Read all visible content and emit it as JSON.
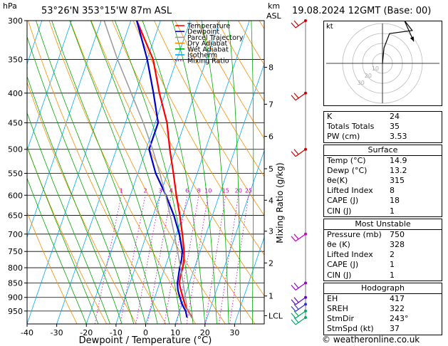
{
  "header": {
    "unit_hpa": "hPa",
    "location": "53°26'N  353°15'W  87m  ASL",
    "unit_km": "km",
    "unit_asl": "ASL",
    "datetime": "19.08.2024  12GMT  (Base: 00)"
  },
  "legend": {
    "items": [
      {
        "label": "Temperature",
        "color": "#ff0000",
        "style": "solid"
      },
      {
        "label": "Dewpoint",
        "color": "#0000cc",
        "style": "solid"
      },
      {
        "label": "Parcel Trajectory",
        "color": "#999999",
        "style": "solid"
      },
      {
        "label": "Dry Adiabat",
        "color": "#ff8c00",
        "style": "solid"
      },
      {
        "label": "Wet Adiabat",
        "color": "#00aa00",
        "style": "solid"
      },
      {
        "label": "Isotherm",
        "color": "#00aaff",
        "style": "solid"
      },
      {
        "label": "Mixing Ratio",
        "color": "#cc00cc",
        "style": "dotted"
      }
    ]
  },
  "chart_data": {
    "type": "line",
    "title": "",
    "xlabel": "Dewpoint / Temperature (°C)",
    "ylabel": "hPa",
    "y2label": "Mixing Ratio (g/kg)",
    "xlim": [
      -40,
      40
    ],
    "ylim": [
      300,
      1000
    ],
    "yscale": "log",
    "x_ticks": [
      "-40",
      "-30",
      "-20",
      "-10",
      "0",
      "10",
      "20",
      "30"
    ],
    "pressure_ticks": [
      "300",
      "350",
      "400",
      "450",
      "500",
      "550",
      "600",
      "650",
      "700",
      "750",
      "800",
      "850",
      "900",
      "950"
    ],
    "km_ticks": [
      {
        "p": 361,
        "label": "8"
      },
      {
        "p": 418,
        "label": "7"
      },
      {
        "p": 475,
        "label": "6"
      },
      {
        "p": 540,
        "label": "5"
      },
      {
        "p": 612,
        "label": "4"
      },
      {
        "p": 692,
        "label": "3"
      },
      {
        "p": 785,
        "label": "2"
      },
      {
        "p": 895,
        "label": "1"
      },
      {
        "p": 968,
        "label": "LCL"
      }
    ],
    "mixing_ratio_labels": [
      "1",
      "2",
      "3",
      "4",
      "6",
      "8",
      "10",
      "15",
      "20",
      "25"
    ],
    "series": [
      {
        "name": "Temperature",
        "color": "#ff0000",
        "points": [
          [
            14.9,
            975
          ],
          [
            12.8,
            950
          ],
          [
            11.0,
            925
          ],
          [
            9.5,
            900
          ],
          [
            8.0,
            875
          ],
          [
            6.6,
            850
          ],
          [
            6.2,
            825
          ],
          [
            6.0,
            800
          ],
          [
            5.5,
            775
          ],
          [
            4.6,
            750
          ],
          [
            2.0,
            700
          ],
          [
            -1.0,
            650
          ],
          [
            -4.5,
            600
          ],
          [
            -8.0,
            550
          ],
          [
            -12.0,
            500
          ],
          [
            -16.0,
            450
          ],
          [
            -22.0,
            400
          ],
          [
            -28.0,
            350
          ],
          [
            -38.0,
            300
          ]
        ]
      },
      {
        "name": "Dewpoint",
        "color": "#0000cc",
        "points": [
          [
            13.2,
            975
          ],
          [
            12.0,
            950
          ],
          [
            10.0,
            925
          ],
          [
            8.5,
            900
          ],
          [
            7.0,
            875
          ],
          [
            6.0,
            850
          ],
          [
            5.5,
            825
          ],
          [
            5.0,
            800
          ],
          [
            4.7,
            775
          ],
          [
            4.0,
            750
          ],
          [
            1.0,
            700
          ],
          [
            -3.0,
            650
          ],
          [
            -8.0,
            600
          ],
          [
            -14.0,
            550
          ],
          [
            -19.0,
            500
          ],
          [
            -19.0,
            450
          ],
          [
            -24.0,
            400
          ],
          [
            -30.0,
            350
          ],
          [
            -38.0,
            300
          ]
        ]
      },
      {
        "name": "Parcel Trajectory",
        "color": "#999999",
        "points": [
          [
            14.9,
            975
          ],
          [
            12.6,
            950
          ],
          [
            10.4,
            900
          ],
          [
            7.9,
            850
          ],
          [
            5.3,
            800
          ],
          [
            2.4,
            750
          ],
          [
            -0.7,
            700
          ],
          [
            -4.2,
            650
          ],
          [
            -8.1,
            600
          ],
          [
            -12.6,
            550
          ],
          [
            -17.8,
            500
          ],
          [
            -24.0,
            450
          ],
          [
            -31.5,
            400
          ],
          [
            -40.0,
            350
          ],
          [
            -49.0,
            300
          ]
        ]
      }
    ],
    "wind_barbs": [
      {
        "p": 300,
        "color": "#cc0000"
      },
      {
        "p": 400,
        "color": "#cc0000"
      },
      {
        "p": 500,
        "color": "#cc0000"
      },
      {
        "p": 700,
        "color": "#cc00cc"
      },
      {
        "p": 850,
        "color": "#9900cc"
      },
      {
        "p": 900,
        "color": "#6600cc"
      },
      {
        "p": 925,
        "color": "#3333cc"
      },
      {
        "p": 950,
        "color": "#00aa66"
      },
      {
        "p": 975,
        "color": "#00aa66"
      }
    ]
  },
  "hodograph": {
    "unit_label": "kt",
    "ring_labels": [
      "10",
      "20",
      "30"
    ],
    "trace": [
      [
        0,
        0
      ],
      [
        0.2,
        2.0
      ],
      [
        0.9,
        3.8
      ],
      [
        3.8,
        4.2
      ],
      [
        1.6,
        7.0
      ],
      [
        2.6,
        5.9
      ],
      [
        4.0,
        2.8
      ]
    ]
  },
  "indices": {
    "top": [
      {
        "k": "K",
        "v": "24"
      },
      {
        "k": "Totals Totals",
        "v": "35"
      },
      {
        "k": "PW (cm)",
        "v": "3.53"
      }
    ],
    "surface_title": "Surface",
    "surface": [
      {
        "k": "Temp (°C)",
        "v": "14.9"
      },
      {
        "k": "Dewp (°C)",
        "v": "13.2"
      },
      {
        "k": "θe(K)",
        "v": "315"
      },
      {
        "k": "Lifted Index",
        "v": "8"
      },
      {
        "k": "CAPE (J)",
        "v": "18"
      },
      {
        "k": "CIN (J)",
        "v": "1"
      }
    ],
    "unstable_title": "Most Unstable",
    "unstable": [
      {
        "k": "Pressure (mb)",
        "v": "750"
      },
      {
        "k": "θe (K)",
        "v": "328"
      },
      {
        "k": "Lifted Index",
        "v": "2"
      },
      {
        "k": "CAPE (J)",
        "v": "1"
      },
      {
        "k": "CIN (J)",
        "v": "1"
      }
    ],
    "hodo_title": "Hodograph",
    "hodo": [
      {
        "k": "EH",
        "v": "417"
      },
      {
        "k": "SREH",
        "v": "322"
      },
      {
        "k": "StmDir",
        "v": "243°"
      },
      {
        "k": "StmSpd (kt)",
        "v": "37"
      }
    ]
  },
  "credit": "© weatheronline.co.uk"
}
